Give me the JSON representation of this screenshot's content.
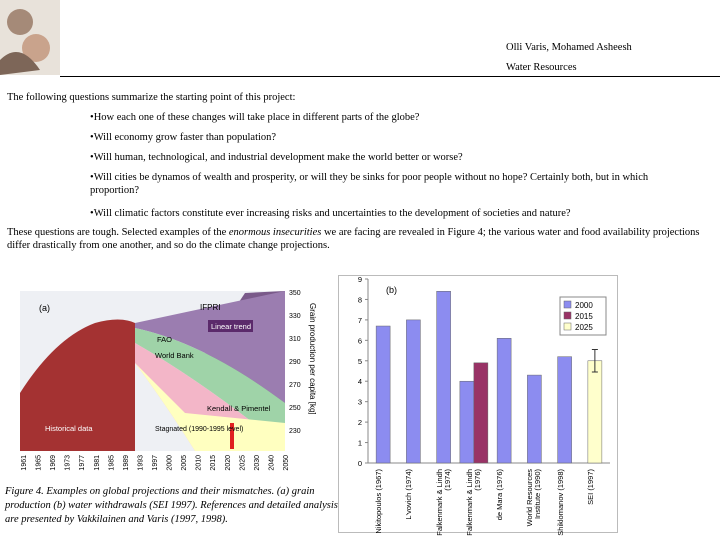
{
  "header": {
    "authors": "Olli Varis, Mohamed Asheesh",
    "unit": "Water Resources"
  },
  "intro": "The following questions summarize the starting point of this project:",
  "bullets": [
    "How each one of these changes will take place in different parts of the globe?",
    "Will economy grow faster than population?",
    "Will human, technological, and industrial development make the world better or worse?",
    "Will cities be dynamos of wealth and prosperity, or will they be sinks for poor people without no hope? Certainly both, but in which proportion?",
    "Will climatic factors constitute ever increasing risks and uncertainties to the development of societies and nature?"
  ],
  "paragraph": {
    "before": "These questions are tough. Selected examples of the",
    "emphasis": "enormous insecurities",
    "after": "we are facing are revealed in Figure 4; the various water and food availability projections differ drastically from one another, and so do the climate change projections."
  },
  "figure_a": {
    "panel_label": "(a)",
    "axis_title": "Grain production per capita [kg]",
    "yticks": [
      "350",
      "330",
      "310",
      "290",
      "270",
      "250",
      "230"
    ],
    "xticks": [
      "1961",
      "1965",
      "1969",
      "1973",
      "1977",
      "1981",
      "1985",
      "1989",
      "1993",
      "1997",
      "2000",
      "2005",
      "2010",
      "2015",
      "2020",
      "2025",
      "2030",
      "2040",
      "2050"
    ],
    "labels": {
      "ifpri": "IFPRI",
      "linear": "Linear trend",
      "fao": "FAO",
      "wb": "World Bank",
      "kp": "Kendall & Pimentel",
      "hist": "Historical data",
      "stag": "Stagnated (1990-1995 level)"
    }
  },
  "chart_data": {
    "type": "bar",
    "panel_label": "(b)",
    "categories": [
      "Nikitopoulos (1967)",
      "L'vovich (1974)",
      "Falkenmark & Lindh (1974)",
      "Falkenmark & Lindh (1976)",
      "de Mara (1976)",
      "World Resources Institute (1990)",
      "Shiklomanov (1998)",
      "SEI (1997)"
    ],
    "series": [
      {
        "name": "2000",
        "color": "#8c8cf0",
        "values": [
          6.7,
          7.0,
          8.4,
          4.0,
          6.1,
          4.3,
          5.2,
          null
        ]
      },
      {
        "name": "2015",
        "color": "#993366",
        "values": [
          null,
          null,
          null,
          4.9,
          null,
          null,
          null,
          null
        ]
      },
      {
        "name": "2025",
        "color": "#ffffcc",
        "values": [
          null,
          null,
          null,
          null,
          null,
          null,
          null,
          5.0
        ],
        "errors": [
          null,
          null,
          null,
          null,
          null,
          null,
          null,
          0.55
        ]
      }
    ],
    "ylim": [
      0,
      9
    ],
    "yticks": [
      0,
      1,
      2,
      3,
      4,
      5,
      6,
      7,
      8,
      9
    ],
    "legend": "top-right"
  },
  "caption": "Figure 4. Examples on global projections and their mismatches. (a) grain production (b) water withdrawals (SEI 1997). References and detailed analysis are presented by Vakkilainen and Varis (1997, 1998)."
}
